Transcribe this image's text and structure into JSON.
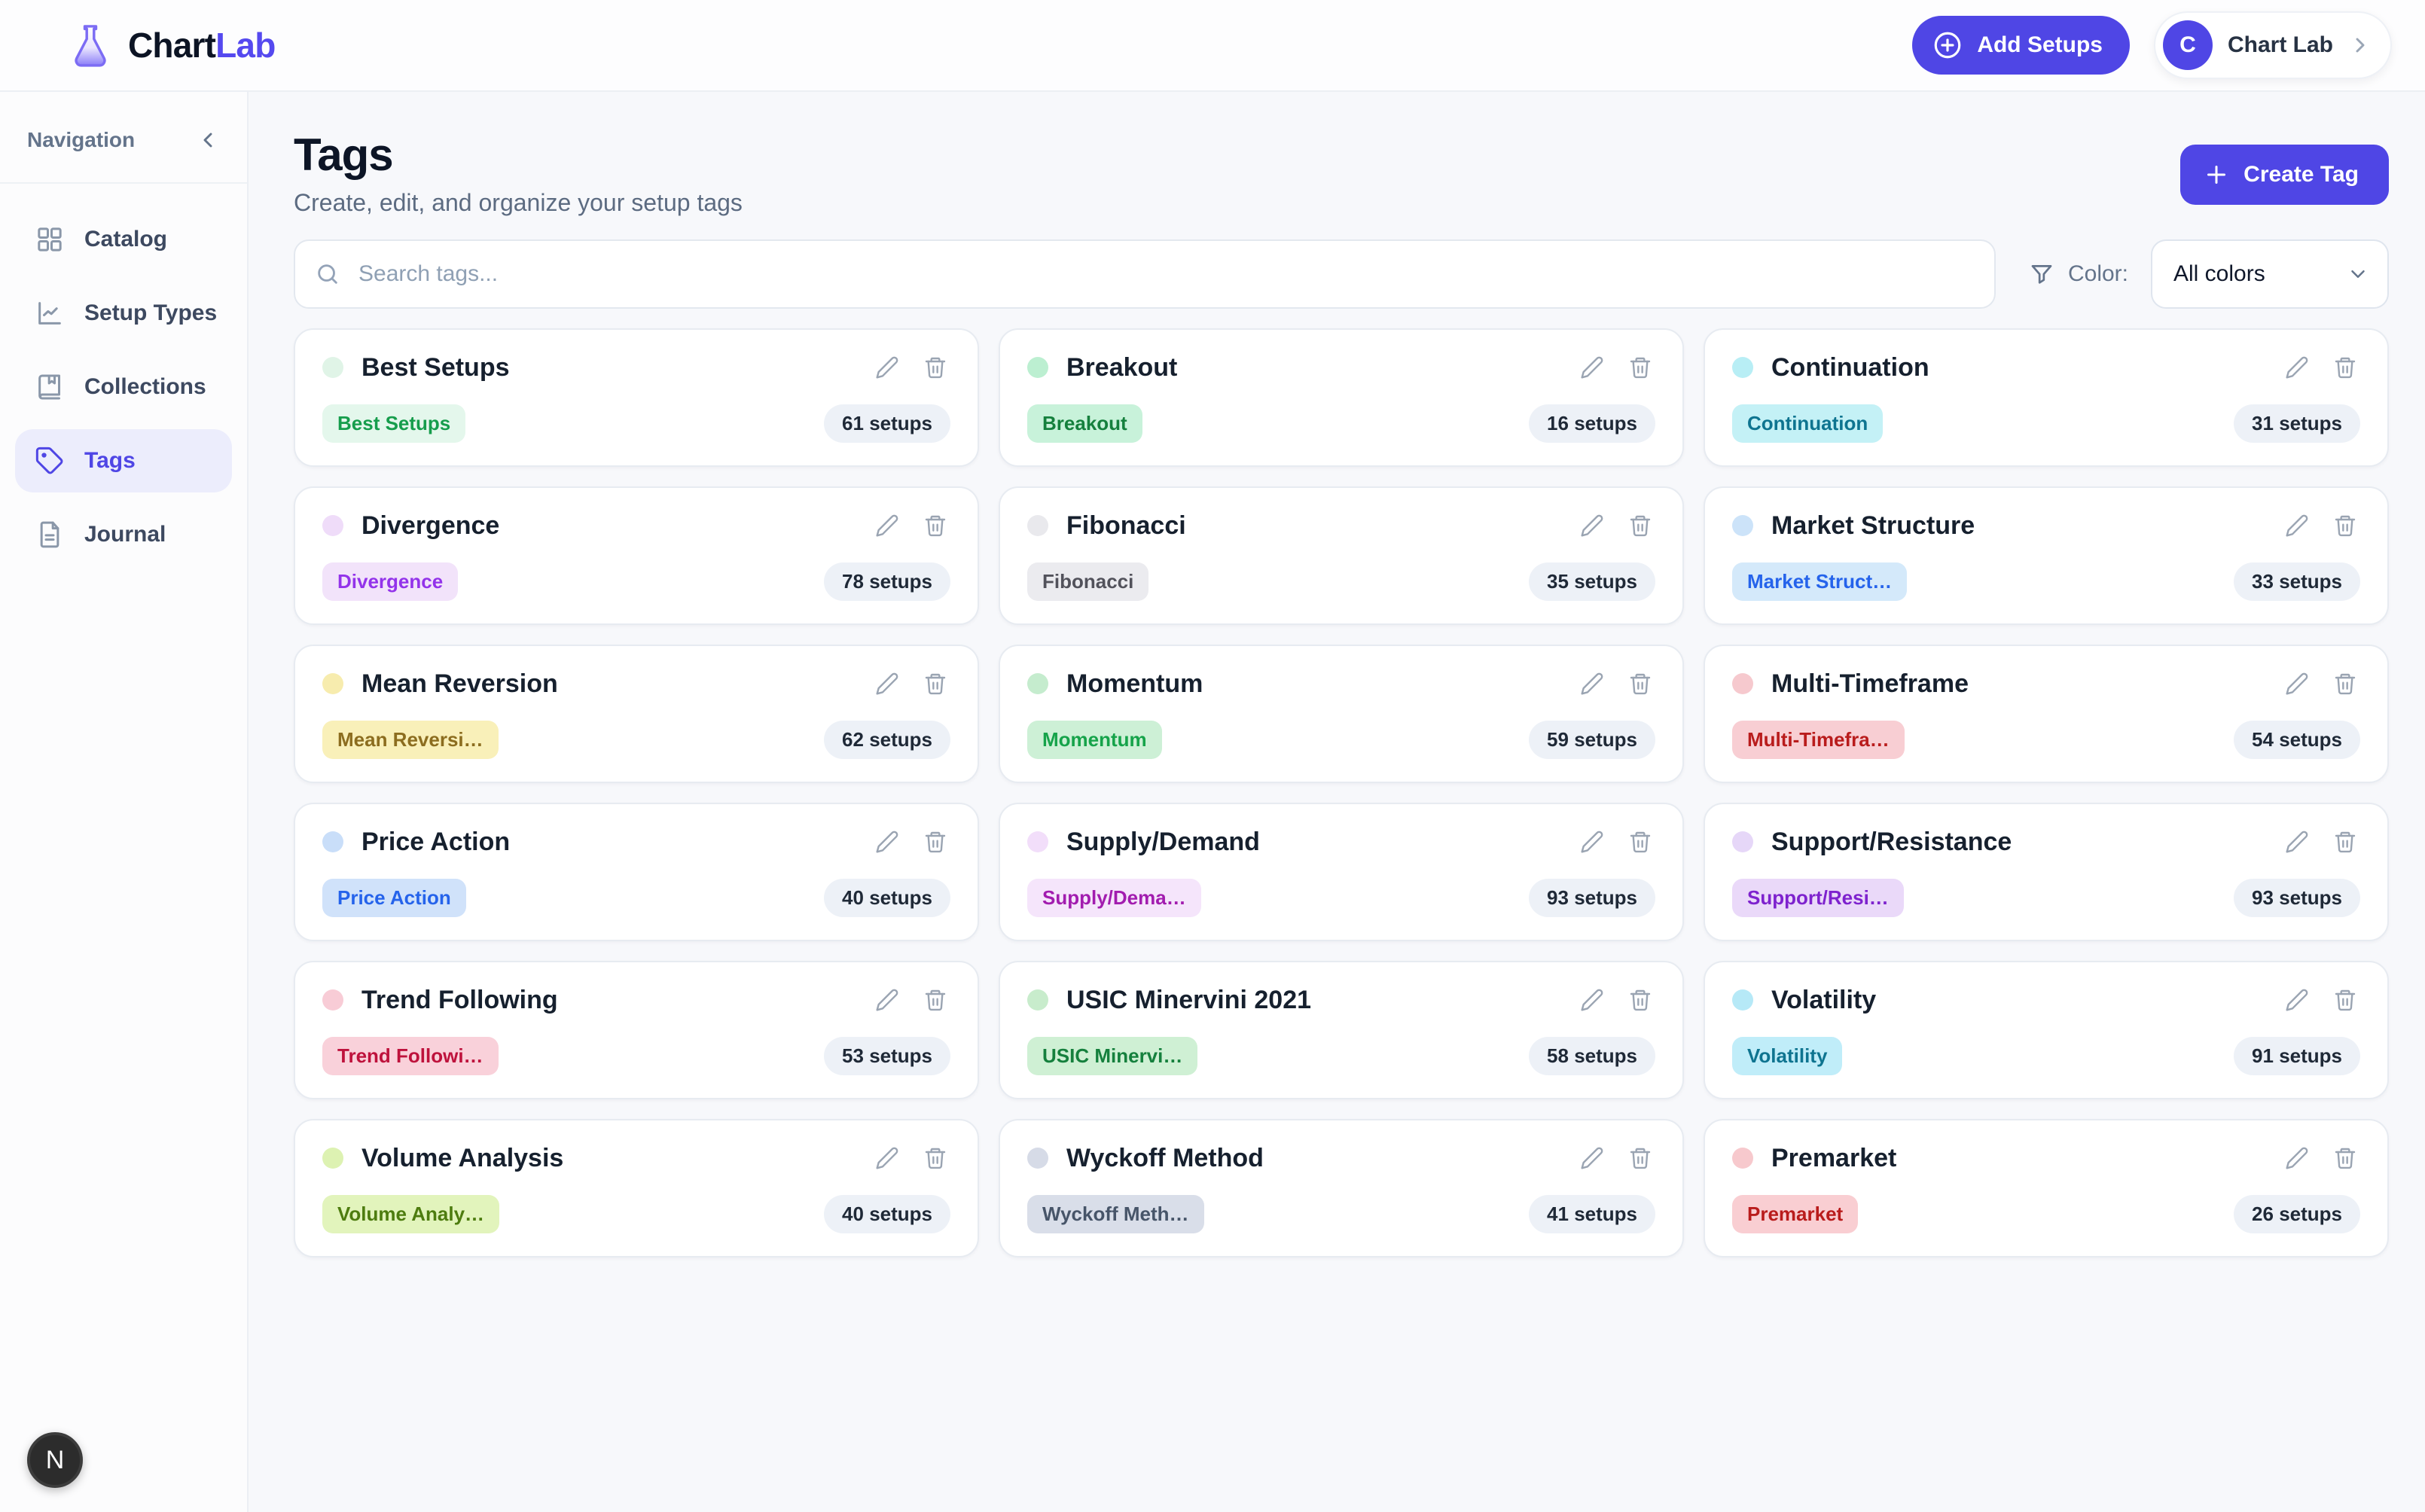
{
  "brand": {
    "logo_icon": "flask-icon",
    "name_primary": "Chart",
    "name_secondary": "Lab",
    "accent_color": "#4f46e5"
  },
  "header": {
    "add_setups_button": "Add Setups",
    "account": {
      "avatar_initial": "C",
      "name": "Chart Lab"
    }
  },
  "sidebar": {
    "title": "Navigation",
    "items": [
      {
        "label": "Catalog",
        "icon": "grid-icon",
        "active": false
      },
      {
        "label": "Setup Types",
        "icon": "chart-line-icon",
        "active": false
      },
      {
        "label": "Collections",
        "icon": "book-icon",
        "active": false
      },
      {
        "label": "Tags",
        "icon": "tag-icon",
        "active": true
      },
      {
        "label": "Journal",
        "icon": "journal-icon",
        "active": false
      }
    ]
  },
  "page": {
    "title": "Tags",
    "subtitle": "Create, edit, and organize your setup tags",
    "create_tag_button": "Create Tag"
  },
  "filters": {
    "search_placeholder": "Search tags...",
    "color_label": "Color:",
    "color_value": "All colors"
  },
  "tags": [
    {
      "name": "Best Setups",
      "badge_label": "Best Setups",
      "count": "61 setups",
      "dot_color": "#e0f4e7",
      "badge_bg": "#e4f7ec",
      "badge_fg": "#169d4c"
    },
    {
      "name": "Breakout",
      "badge_label": "Breakout",
      "count": "16 setups",
      "dot_color": "#bcefd1",
      "badge_bg": "#c8f2da",
      "badge_fg": "#15803d"
    },
    {
      "name": "Continuation",
      "badge_label": "Continuation",
      "count": "31 setups",
      "dot_color": "#b8eef5",
      "badge_bg": "#c4f1f6",
      "badge_fg": "#0e7490"
    },
    {
      "name": "Divergence",
      "badge_label": "Divergence",
      "count": "78 setups",
      "dot_color": "#efdcf9",
      "badge_bg": "#f2e3fa",
      "badge_fg": "#9333ea"
    },
    {
      "name": "Fibonacci",
      "badge_label": "Fibonacci",
      "count": "35 setups",
      "dot_color": "#e9e9ed",
      "badge_bg": "#ebebef",
      "badge_fg": "#52525b"
    },
    {
      "name": "Market Structure",
      "badge_label": "Market Struct…",
      "count": "33 setups",
      "dot_color": "#cce3f9",
      "badge_bg": "#d4e9fa",
      "badge_fg": "#2563eb"
    },
    {
      "name": "Mean Reversion",
      "badge_label": "Mean Reversi…",
      "count": "62 setups",
      "dot_color": "#f7ecae",
      "badge_bg": "#f9f0b9",
      "badge_fg": "#8c6d1f"
    },
    {
      "name": "Momentum",
      "badge_label": "Momentum",
      "count": "59 setups",
      "dot_color": "#c5ecce",
      "badge_bg": "#cdf0d6",
      "badge_fg": "#16a34a"
    },
    {
      "name": "Multi-Timeframe",
      "badge_label": "Multi-Timefra…",
      "count": "54 setups",
      "dot_color": "#f6c9ce",
      "badge_bg": "#f8ced3",
      "badge_fg": "#b91c1c"
    },
    {
      "name": "Price Action",
      "badge_label": "Price Action",
      "count": "40 setups",
      "dot_color": "#c9def9",
      "badge_bg": "#d0e2fa",
      "badge_fg": "#2563eb"
    },
    {
      "name": "Supply/Demand",
      "badge_label": "Supply/Dema…",
      "count": "93 setups",
      "dot_color": "#f2defa",
      "badge_bg": "#f5e5fb",
      "badge_fg": "#a21caf"
    },
    {
      "name": "Support/Resistance",
      "badge_label": "Support/Resi…",
      "count": "93 setups",
      "dot_color": "#e6d7f8",
      "badge_bg": "#ead9f9",
      "badge_fg": "#7e22ce"
    },
    {
      "name": "Trend Following",
      "badge_label": "Trend Followi…",
      "count": "53 setups",
      "dot_color": "#f8ccd6",
      "badge_bg": "#f9d1da",
      "badge_fg": "#be123c"
    },
    {
      "name": "USIC Minervini 2021",
      "badge_label": "USIC Minervi…",
      "count": "58 setups",
      "dot_color": "#c8eccc",
      "badge_bg": "#cff0d4",
      "badge_fg": "#15803d"
    },
    {
      "name": "Volatility",
      "badge_label": "Volatility",
      "count": "91 setups",
      "dot_color": "#b6e9f7",
      "badge_bg": "#c0edf9",
      "badge_fg": "#0e7490"
    },
    {
      "name": "Volume Analysis",
      "badge_label": "Volume Analy…",
      "count": "40 setups",
      "dot_color": "#ddf2b2",
      "badge_bg": "#e2f4bc",
      "badge_fg": "#4d7c0f"
    },
    {
      "name": "Wyckoff Method",
      "badge_label": "Wyckoff Meth…",
      "count": "41 setups",
      "dot_color": "#d6dbe7",
      "badge_bg": "#d9dee9",
      "badge_fg": "#475569"
    },
    {
      "name": "Premarket",
      "badge_label": "Premarket",
      "count": "26 setups",
      "dot_color": "#f7c9cd",
      "badge_bg": "#f9ced2",
      "badge_fg": "#b91c1c"
    }
  ],
  "floating_badge": "N"
}
